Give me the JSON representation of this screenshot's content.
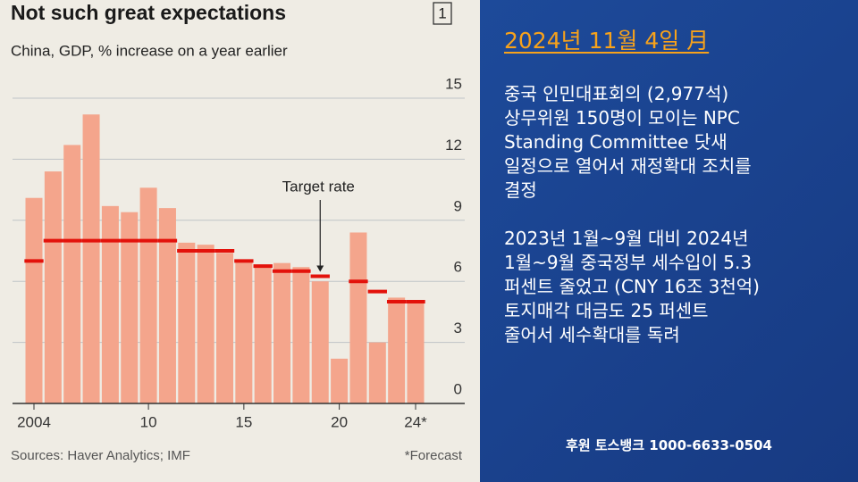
{
  "chart_data": {
    "type": "bar",
    "title": "Not such great expectations",
    "badge": "1",
    "subtitle": "China, GDP, % increase on a year earlier",
    "categories": [
      "2004",
      null,
      null,
      null,
      null,
      null,
      "10",
      null,
      null,
      null,
      null,
      "15",
      null,
      null,
      null,
      null,
      "20",
      null,
      null,
      null,
      "24*"
    ],
    "series": [
      {
        "color": "#f4a58c",
        "values": [
          10.1,
          11.4,
          12.7,
          14.2,
          9.7,
          9.4,
          10.6,
          9.6,
          7.9,
          7.8,
          7.4,
          7.0,
          6.8,
          6.9,
          6.7,
          6.0,
          2.2,
          8.4,
          3.0,
          5.2,
          5.0
        ]
      },
      {
        "name": "Target rate",
        "type": "step",
        "color": "#e3120b",
        "values": [
          7,
          8,
          8,
          8,
          8,
          8,
          8,
          8,
          7.5,
          7.5,
          7.5,
          7,
          6.75,
          6.5,
          6.5,
          6.25,
          null,
          6,
          5.5,
          5,
          5
        ]
      }
    ],
    "ylim": [
      0,
      15
    ],
    "yticks": [
      0,
      3,
      6,
      9,
      12,
      15
    ],
    "grid": true,
    "source": "Sources: Haver Analytics; IMF",
    "footnote": "*Forecast"
  },
  "panel": {
    "date": "2024년 11월 4일 月",
    "paragraphs": [
      [
        "중국 인민대표회의 (2,977석)",
        "상무위원 150명이 모이는 NPC",
        "Standing Committee 닷새",
        "일정으로 열어서 재정확대 조치를",
        "결정"
      ],
      [
        "2023년 1월~9월 대비 2024년",
        "1월~9월 중국정부 세수입이 5.3",
        "퍼센트 줄었고 (CNY 16조 3천억)",
        "토지매각 대금도 25 퍼센트",
        "줄어서 세수확대를 독려"
      ]
    ],
    "sponsor": "후원 토스뱅크 1000-6633-0504"
  }
}
